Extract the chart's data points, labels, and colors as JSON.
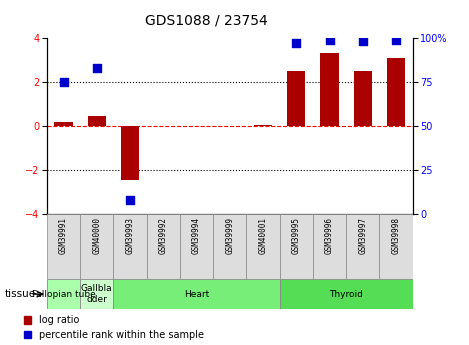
{
  "title": "GDS1088 / 23754",
  "samples": [
    "GSM39991",
    "GSM40000",
    "GSM39993",
    "GSM39992",
    "GSM39994",
    "GSM39999",
    "GSM40001",
    "GSM39995",
    "GSM39996",
    "GSM39997",
    "GSM39998"
  ],
  "log_ratio": [
    0.2,
    0.45,
    -2.45,
    0.0,
    0.0,
    0.0,
    0.05,
    2.5,
    3.3,
    2.5,
    3.1
  ],
  "percentile": [
    75,
    83,
    8,
    null,
    null,
    null,
    null,
    97,
    99,
    98,
    99
  ],
  "tissues": [
    {
      "label": "Fallopian tube",
      "start": 0,
      "end": 1,
      "color": "#aaffaa"
    },
    {
      "label": "Gallbla\ndder",
      "start": 1,
      "end": 2,
      "color": "#ccffcc"
    },
    {
      "label": "Heart",
      "start": 2,
      "end": 7,
      "color": "#77ee77"
    },
    {
      "label": "Thyroid",
      "start": 7,
      "end": 11,
      "color": "#55dd55"
    }
  ],
  "bar_color": "#aa0000",
  "dot_color": "#0000cc",
  "ylim": [
    -4,
    4
  ],
  "y2lim": [
    0,
    100
  ],
  "yticks": [
    -4,
    -2,
    0,
    2,
    4
  ],
  "y2ticks": [
    0,
    25,
    50,
    75,
    100
  ],
  "y2ticklabels": [
    "0",
    "25",
    "50",
    "75",
    "100%"
  ],
  "hlines": [
    {
      "y": 2.0,
      "linestyle": "dotted",
      "color": "black",
      "lw": 0.8
    },
    {
      "y": 0.0,
      "linestyle": "dashed",
      "color": "red",
      "lw": 0.8
    },
    {
      "y": -2.0,
      "linestyle": "dotted",
      "color": "black",
      "lw": 0.8
    }
  ],
  "bar_width": 0.55,
  "dot_size": 40,
  "title_fontsize": 10,
  "tick_fontsize": 7,
  "sample_fontsize": 5.5,
  "tissue_fontsize": 6.5,
  "legend_fontsize": 7
}
